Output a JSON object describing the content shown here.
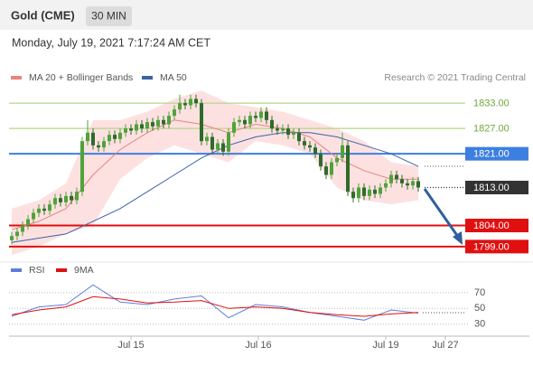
{
  "header": {
    "title": "Gold (CME)",
    "timeframe": "30 MIN",
    "timestamp": "Monday, July 19, 2021 7:17:24 AM CET"
  },
  "chart_data": [
    {
      "type": "candlestick",
      "credit": "Research © 2021 Trading Central",
      "xlim": [
        -0.5,
        95.5
      ],
      "ylim": [
        1796.4,
        1837.1
      ],
      "x": [
        0,
        1,
        2,
        3,
        4,
        5,
        6,
        7,
        8,
        9,
        10,
        11,
        12,
        13,
        14,
        15,
        16,
        17,
        18,
        19,
        20,
        21,
        22,
        23,
        24,
        25,
        26,
        27,
        28,
        29,
        30,
        31,
        32,
        33,
        34,
        35,
        36,
        37,
        38,
        39,
        40,
        41,
        42,
        43,
        44,
        45,
        46,
        47,
        48,
        49,
        50,
        51,
        52,
        53,
        54,
        55,
        56,
        57,
        58,
        59,
        60,
        61,
        62,
        63,
        64,
        65,
        66,
        67,
        68,
        69,
        70,
        71,
        72,
        73,
        74,
        75
      ],
      "open": [
        1800.5,
        1801.5,
        1802.5,
        1804,
        1805.5,
        1807,
        1808,
        1807.5,
        1809,
        1810.5,
        1809.5,
        1811,
        1810,
        1812,
        1824,
        1826,
        1823,
        1822.5,
        1824,
        1825.5,
        1824.5,
        1826,
        1827,
        1826.5,
        1828,
        1827,
        1828.5,
        1827.5,
        1829,
        1828,
        1830,
        1831.5,
        1833,
        1832.5,
        1834,
        1833,
        1824,
        1825,
        1822,
        1823.5,
        1821.5,
        1826,
        1828.5,
        1829,
        1828,
        1830,
        1829.5,
        1831,
        1829,
        1827,
        1826.5,
        1827,
        1825.5,
        1826,
        1824,
        1823,
        1822.5,
        1821,
        1818,
        1816,
        1819,
        1820,
        1823,
        1812,
        1810.5,
        1813,
        1811,
        1812.5,
        1811.5,
        1813,
        1814,
        1816,
        1815,
        1814,
        1813.5,
        1814.5
      ],
      "high": [
        1802.5,
        1803.5,
        1805,
        1806.5,
        1808,
        1809,
        1809,
        1810,
        1811.5,
        1811.5,
        1812,
        1812,
        1813,
        1825,
        1829,
        1827,
        1824,
        1825,
        1826.5,
        1826.5,
        1827,
        1828,
        1828,
        1829,
        1829,
        1829.5,
        1829.5,
        1830,
        1830,
        1831,
        1832.5,
        1835,
        1834,
        1835,
        1835,
        1834,
        1826,
        1826,
        1824.5,
        1824.5,
        1827,
        1829.5,
        1830,
        1830,
        1831,
        1831,
        1832,
        1832,
        1830,
        1828,
        1828,
        1828,
        1827,
        1827,
        1825,
        1824,
        1823.5,
        1822,
        1819,
        1820,
        1821,
        1826,
        1824,
        1813,
        1814,
        1814,
        1813.5,
        1813.5,
        1814,
        1815,
        1817,
        1817,
        1816,
        1815,
        1815.5,
        1815.5
      ],
      "low": [
        1799.5,
        1800.5,
        1801.5,
        1803,
        1804.5,
        1806,
        1806.5,
        1806.5,
        1808,
        1808.5,
        1808.5,
        1809,
        1809,
        1811,
        1823,
        1822,
        1821.5,
        1821.5,
        1823,
        1823.5,
        1823.5,
        1825,
        1825.5,
        1825.5,
        1826,
        1826,
        1826.5,
        1826.5,
        1827,
        1827,
        1829,
        1830.5,
        1831.5,
        1831.5,
        1832,
        1823,
        1823,
        1821,
        1821,
        1820.5,
        1820.5,
        1825,
        1827.5,
        1827,
        1827,
        1828.5,
        1828.5,
        1828,
        1826,
        1825.5,
        1825.5,
        1824.5,
        1824.5,
        1823,
        1822,
        1821.5,
        1820,
        1817,
        1815,
        1815,
        1818,
        1819,
        1811,
        1809.5,
        1809.5,
        1810,
        1810,
        1810.5,
        1810.5,
        1812,
        1813,
        1814,
        1813,
        1812.5,
        1812.5,
        1812
      ],
      "close": [
        1801.5,
        1802.5,
        1804,
        1805.5,
        1807,
        1808,
        1807.5,
        1809,
        1810.5,
        1809.5,
        1811,
        1810,
        1812,
        1824,
        1826,
        1823,
        1822.5,
        1824,
        1825.5,
        1824.5,
        1826,
        1827,
        1826.5,
        1828,
        1827,
        1828.5,
        1827.5,
        1829,
        1828,
        1830,
        1831.5,
        1833,
        1832.5,
        1834,
        1833,
        1824,
        1825,
        1822,
        1823.5,
        1821.5,
        1826,
        1828.5,
        1829,
        1828,
        1830,
        1829.5,
        1831,
        1829,
        1827,
        1826.5,
        1827,
        1825.5,
        1826,
        1824,
        1823,
        1822.5,
        1821,
        1818,
        1816,
        1819,
        1820,
        1823,
        1812,
        1810.5,
        1813,
        1811,
        1812.5,
        1811.5,
        1813,
        1814,
        1816,
        1815,
        1814,
        1813.5,
        1814.5,
        1813
      ],
      "up_color": "#4fa33a",
      "down_color": "#2e6b2a",
      "series": [
        {
          "name": "MA 20 + Bollinger Bands",
          "color": "#e8837e",
          "band_color": "#fde1e1",
          "x": [
            0,
            5,
            10,
            15,
            20,
            25,
            30,
            35,
            40,
            45,
            50,
            55,
            60,
            65,
            70,
            75
          ],
          "values": [
            1803,
            1805,
            1808,
            1816,
            1822,
            1826,
            1829,
            1828,
            1826,
            1828,
            1827,
            1825,
            1820,
            1817,
            1815,
            1815
          ],
          "upper": [
            1808,
            1810,
            1814,
            1829,
            1829,
            1831,
            1834,
            1836,
            1833,
            1832,
            1831,
            1829,
            1827,
            1824,
            1819,
            1818
          ],
          "lower": [
            1797,
            1799,
            1802,
            1804,
            1815,
            1820,
            1823,
            1821,
            1819,
            1824,
            1823,
            1821,
            1813,
            1810,
            1809,
            1810
          ]
        },
        {
          "name": "MA 50",
          "color": "#3b62a8",
          "x": [
            0,
            5,
            10,
            15,
            20,
            25,
            30,
            35,
            40,
            45,
            50,
            55,
            60,
            65,
            70,
            75
          ],
          "values": [
            1800,
            1801,
            1802,
            1805,
            1808,
            1812,
            1816,
            1820,
            1823,
            1825,
            1826,
            1826,
            1825,
            1823,
            1821,
            1818
          ]
        }
      ],
      "levels": [
        {
          "value": 1833,
          "label": "1833.00",
          "color": "#b5d68a",
          "text_color": "#6fa83a",
          "boxed": false
        },
        {
          "value": 1827,
          "label": "1827.00",
          "color": "#b5d68a",
          "text_color": "#6fa83a",
          "boxed": false
        },
        {
          "value": 1821,
          "label": "1821.00",
          "color": "#3d7fe0",
          "text_color": "#ffffff",
          "boxed": true
        },
        {
          "value": 1813,
          "label": "1813.00",
          "color": "#333333",
          "text_color": "#ffffff",
          "boxed": true,
          "dotted": true
        },
        {
          "value": 1804,
          "label": "1804.00",
          "color": "#e01010",
          "text_color": "#ffffff",
          "boxed": true
        },
        {
          "value": 1799,
          "label": "1799.00",
          "color": "#e01010",
          "text_color": "#ffffff",
          "boxed": true
        }
      ]
    },
    {
      "type": "line",
      "xlim": [
        -0.5,
        95.5
      ],
      "ylim": [
        17,
        86
      ],
      "yticks": [
        70,
        50,
        30
      ],
      "xticks": [
        {
          "value": 22,
          "label": "Jul 15"
        },
        {
          "value": 45.5,
          "label": "Jul 16"
        },
        {
          "value": 69,
          "label": "Jul 19"
        },
        {
          "value": 80,
          "label": "Jul 27"
        }
      ],
      "grid": true,
      "series": [
        {
          "name": "RSI",
          "color": "#5b7fd6",
          "x": [
            0,
            5,
            10,
            15,
            20,
            25,
            30,
            35,
            40,
            45,
            50,
            55,
            60,
            65,
            70,
            75
          ],
          "values": [
            40,
            52,
            55,
            80,
            58,
            55,
            62,
            66,
            38,
            55,
            52,
            45,
            40,
            35,
            48,
            44
          ]
        },
        {
          "name": "9MA",
          "color": "#e01010",
          "x": [
            0,
            5,
            10,
            15,
            20,
            25,
            30,
            35,
            40,
            45,
            50,
            55,
            60,
            65,
            70,
            75
          ],
          "values": [
            42,
            48,
            52,
            65,
            62,
            57,
            58,
            60,
            50,
            52,
            50,
            45,
            42,
            40,
            43,
            45
          ]
        }
      ]
    }
  ]
}
